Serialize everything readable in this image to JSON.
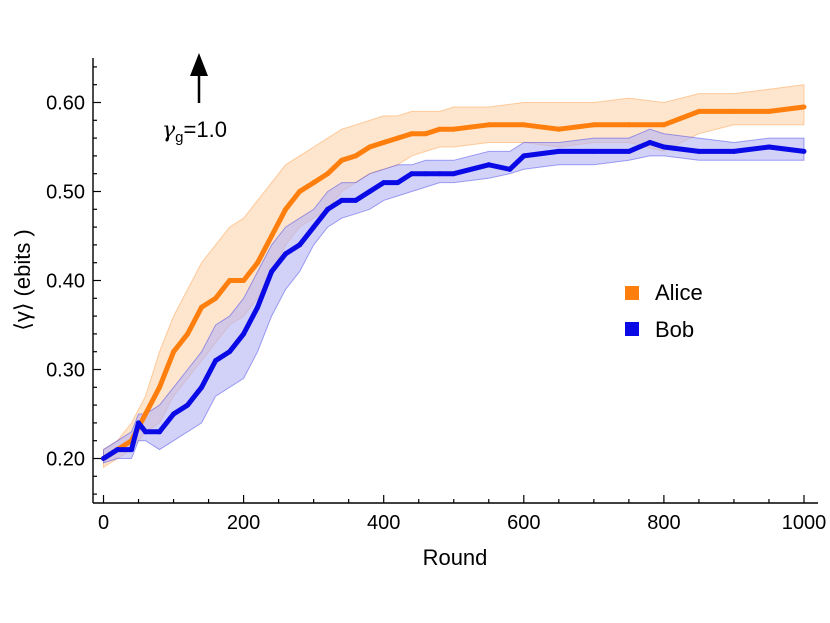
{
  "chart_data": {
    "type": "line",
    "xlabel": "Round",
    "ylabel": "⟨γ⟩ (ebits )",
    "xlim": [
      -15,
      1020
    ],
    "ylim": [
      0.15,
      0.65
    ],
    "xticks": [
      0,
      200,
      400,
      600,
      800,
      1000
    ],
    "xtick_labels": [
      "0",
      "200",
      "400",
      "600",
      "800",
      "1000"
    ],
    "yticks": [
      0.2,
      0.3,
      0.4,
      0.5,
      0.6
    ],
    "ytick_labels": [
      "0.20",
      "0.30",
      "0.40",
      "0.50",
      "0.60"
    ],
    "annotation": {
      "symbol": "γ",
      "subscript": "g",
      "text": "=1.0",
      "arrow_x": 130
    },
    "legend_position": "right",
    "series": [
      {
        "name": "Alice",
        "color": "#ff7f0e",
        "band_color": "#fdd5ad",
        "x": [
          0,
          20,
          40,
          60,
          80,
          100,
          120,
          140,
          160,
          180,
          200,
          220,
          240,
          260,
          280,
          300,
          320,
          340,
          360,
          380,
          400,
          420,
          440,
          460,
          480,
          500,
          550,
          600,
          650,
          700,
          750,
          800,
          850,
          900,
          950,
          1000
        ],
        "values": [
          0.2,
          0.21,
          0.22,
          0.25,
          0.28,
          0.32,
          0.34,
          0.37,
          0.38,
          0.4,
          0.4,
          0.42,
          0.45,
          0.48,
          0.5,
          0.51,
          0.52,
          0.535,
          0.54,
          0.55,
          0.555,
          0.56,
          0.565,
          0.565,
          0.57,
          0.57,
          0.575,
          0.575,
          0.57,
          0.575,
          0.575,
          0.575,
          0.59,
          0.59,
          0.59,
          0.595
        ],
        "lower": [
          0.19,
          0.2,
          0.21,
          0.23,
          0.24,
          0.27,
          0.29,
          0.31,
          0.33,
          0.35,
          0.36,
          0.38,
          0.41,
          0.44,
          0.46,
          0.47,
          0.48,
          0.5,
          0.51,
          0.52,
          0.525,
          0.53,
          0.54,
          0.545,
          0.55,
          0.55,
          0.555,
          0.555,
          0.55,
          0.555,
          0.555,
          0.545,
          0.565,
          0.575,
          0.575,
          0.575
        ],
        "upper": [
          0.21,
          0.22,
          0.24,
          0.27,
          0.32,
          0.36,
          0.39,
          0.42,
          0.44,
          0.46,
          0.47,
          0.49,
          0.51,
          0.53,
          0.54,
          0.55,
          0.56,
          0.57,
          0.575,
          0.58,
          0.585,
          0.585,
          0.59,
          0.59,
          0.59,
          0.595,
          0.595,
          0.6,
          0.6,
          0.6,
          0.605,
          0.6,
          0.61,
          0.61,
          0.615,
          0.62
        ]
      },
      {
        "name": "Bob",
        "color": "#0a0ae6",
        "band_color": "#b4b4f5",
        "x": [
          0,
          20,
          40,
          50,
          60,
          80,
          100,
          120,
          140,
          160,
          180,
          200,
          220,
          240,
          260,
          280,
          300,
          320,
          340,
          360,
          380,
          400,
          420,
          440,
          460,
          480,
          500,
          550,
          580,
          600,
          650,
          700,
          750,
          780,
          800,
          850,
          900,
          950,
          1000
        ],
        "values": [
          0.2,
          0.21,
          0.21,
          0.24,
          0.23,
          0.23,
          0.25,
          0.26,
          0.28,
          0.31,
          0.32,
          0.34,
          0.37,
          0.41,
          0.43,
          0.44,
          0.46,
          0.48,
          0.49,
          0.49,
          0.5,
          0.51,
          0.51,
          0.52,
          0.52,
          0.52,
          0.52,
          0.53,
          0.525,
          0.54,
          0.545,
          0.545,
          0.545,
          0.555,
          0.55,
          0.545,
          0.545,
          0.55,
          0.545
        ],
        "lower": [
          0.195,
          0.2,
          0.2,
          0.22,
          0.22,
          0.21,
          0.22,
          0.23,
          0.24,
          0.27,
          0.28,
          0.29,
          0.32,
          0.36,
          0.39,
          0.41,
          0.44,
          0.46,
          0.47,
          0.475,
          0.48,
          0.49,
          0.495,
          0.5,
          0.505,
          0.51,
          0.51,
          0.515,
          0.52,
          0.525,
          0.53,
          0.53,
          0.535,
          0.54,
          0.54,
          0.535,
          0.535,
          0.535,
          0.535
        ],
        "upper": [
          0.21,
          0.22,
          0.23,
          0.25,
          0.25,
          0.26,
          0.28,
          0.3,
          0.32,
          0.35,
          0.36,
          0.38,
          0.41,
          0.44,
          0.46,
          0.47,
          0.48,
          0.5,
          0.51,
          0.51,
          0.52,
          0.525,
          0.53,
          0.53,
          0.535,
          0.535,
          0.535,
          0.545,
          0.545,
          0.555,
          0.555,
          0.56,
          0.56,
          0.57,
          0.565,
          0.56,
          0.555,
          0.56,
          0.56
        ]
      }
    ]
  }
}
